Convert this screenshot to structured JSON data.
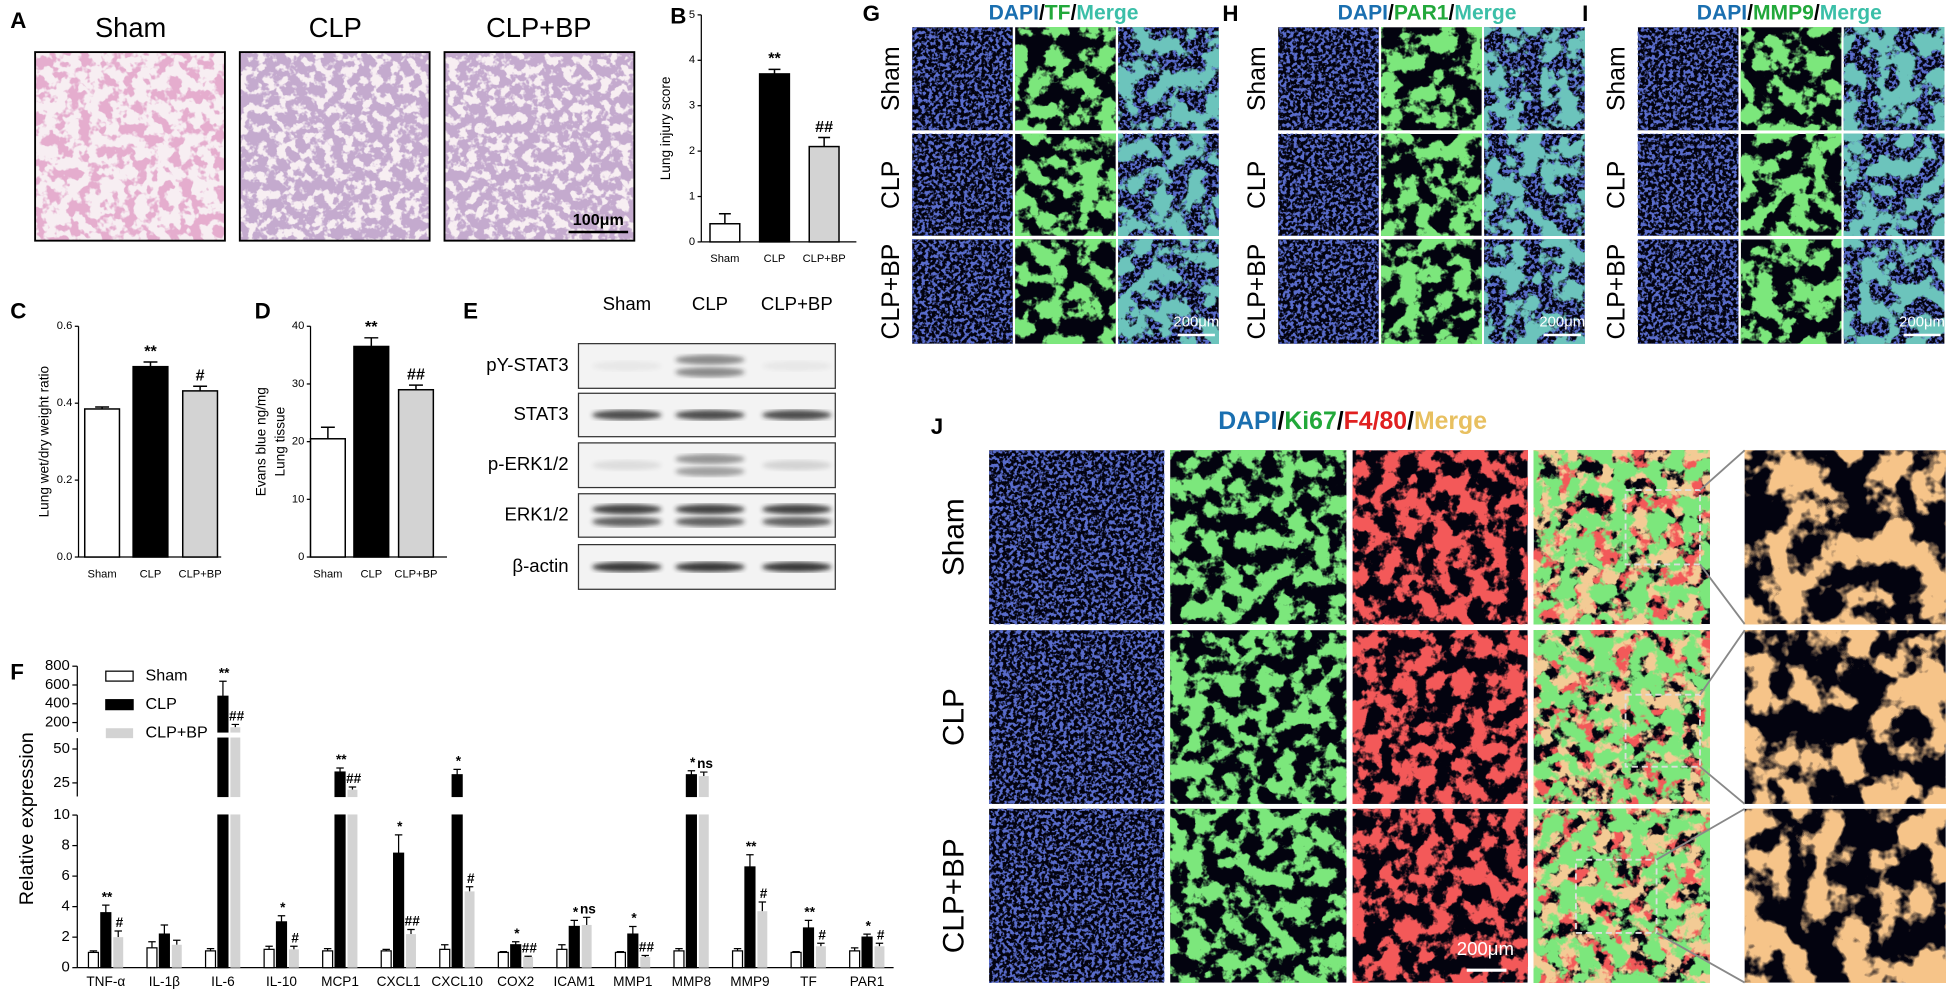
{
  "chart_data": [
    {
      "panel": "B",
      "type": "bar",
      "ylabel": "Lung injury score",
      "categories": [
        "Sham",
        "CLP",
        "CLP+BP"
      ],
      "values": [
        0.4,
        3.7,
        2.1
      ],
      "errors": [
        0.22,
        0.1,
        0.2
      ],
      "colors": [
        "#ffffff",
        "#000000",
        "#d3d3d3"
      ],
      "labels": [
        null,
        "**",
        "##"
      ],
      "ylim": [
        0,
        5
      ],
      "yticks": [
        0,
        1,
        2,
        3,
        4,
        5
      ]
    },
    {
      "panel": "C",
      "type": "bar",
      "ylabel": "Lung wet/dry weight ratio",
      "categories": [
        "Sham",
        "CLP",
        "CLP+BP"
      ],
      "values": [
        0.385,
        0.495,
        0.432
      ],
      "errors": [
        0.005,
        0.012,
        0.012
      ],
      "colors": [
        "#ffffff",
        "#000000",
        "#d3d3d3"
      ],
      "labels": [
        null,
        "**",
        "#"
      ],
      "ylim": [
        0,
        0.6
      ],
      "yticks": [
        {
          "value": 0,
          "label": "0.0"
        },
        0.2,
        0.4,
        0.6
      ]
    },
    {
      "panel": "D",
      "type": "bar",
      "ylabel": [
        "Evans blue ng/mg",
        "Lung tissue"
      ],
      "categories": [
        "Sham",
        "CLP",
        "CLP+BP"
      ],
      "values": [
        20.5,
        36.5,
        29
      ],
      "errors": [
        2,
        1.5,
        0.8
      ],
      "colors": [
        "#ffffff",
        "#000000",
        "#d3d3d3"
      ],
      "labels": [
        null,
        "**",
        "##"
      ],
      "ylim": [
        0,
        40
      ],
      "yticks": [
        0,
        10,
        20,
        30,
        40
      ]
    },
    {
      "panel": "F",
      "type": "grouped_bar",
      "ylabel": "Relative expression",
      "legend": "upper left",
      "categories": [
        "TNF-α",
        "IL-1β",
        "IL-6",
        "IL-10",
        "MCP1",
        "CXCL1",
        "CXCL10",
        "COX2",
        "ICAM1",
        "MMP1",
        "MMP8",
        "MMP9",
        "TF",
        "PAR1"
      ],
      "series": [
        {
          "name": "Sham",
          "color": "#ffffff",
          "values": [
            1.0,
            1.3,
            1.1,
            1.2,
            1.1,
            1.1,
            1.2,
            1.0,
            1.2,
            1.0,
            1.1,
            1.1,
            1.0,
            1.1
          ],
          "errors": [
            0.1,
            0.4,
            0.15,
            0.2,
            0.15,
            0.1,
            0.3,
            0.05,
            0.3,
            0.05,
            0.15,
            0.15,
            0.05,
            0.2
          ],
          "labels": [
            null,
            null,
            null,
            null,
            null,
            null,
            null,
            null,
            null,
            null,
            null,
            null,
            null,
            null
          ]
        },
        {
          "name": "CLP",
          "color": "#000000",
          "values": [
            3.6,
            2.2,
            480,
            3.0,
            33,
            7.5,
            31,
            1.5,
            2.7,
            2.2,
            31,
            6.6,
            2.6,
            2.0
          ],
          "errors": [
            0.5,
            0.6,
            160,
            0.4,
            3,
            1.2,
            4,
            0.2,
            0.4,
            0.5,
            3,
            0.8,
            0.5,
            0.2
          ],
          "labels": [
            "**",
            null,
            "**",
            "*",
            "**",
            "*",
            "*",
            "*",
            "*",
            "*",
            "*",
            "**",
            "**",
            "*"
          ]
        },
        {
          "name": "CLP+BP",
          "color": "#d3d3d3",
          "values": [
            2.0,
            1.5,
            150,
            1.2,
            20,
            2.2,
            5.0,
            0.7,
            2.8,
            0.7,
            30,
            3.7,
            1.4,
            1.4
          ],
          "errors": [
            0.4,
            0.3,
            30,
            0.2,
            2,
            0.3,
            0.3,
            0.05,
            0.5,
            0.1,
            3,
            0.6,
            0.2,
            0.2
          ],
          "labels": [
            "#",
            null,
            "##",
            "#",
            "##",
            "##",
            "#",
            "##",
            "ns",
            "##",
            "ns",
            "#",
            "#",
            "#"
          ]
        }
      ],
      "y_segments": [
        {
          "ylim": [
            0,
            10
          ],
          "yticks": [
            0,
            2,
            4,
            6,
            8,
            10
          ]
        },
        {
          "ylim": [
            15,
            58
          ],
          "yticks": [
            25,
            50
          ]
        },
        {
          "ylim": [
            100,
            800
          ],
          "yticks": [
            200,
            400,
            600,
            800
          ]
        }
      ]
    }
  ],
  "panels": {
    "A": {
      "letter": "A",
      "titles": [
        "Sham",
        "CLP",
        "CLP+BP"
      ],
      "scale_bar": "100μm"
    },
    "E": {
      "letter": "E",
      "columns": [
        "Sham",
        "CLP",
        "CLP+BP"
      ],
      "rows": [
        "pY-STAT3",
        "STAT3",
        "p-ERK1/2",
        "ERK1/2",
        "β-actin"
      ]
    },
    "G": {
      "letter": "G",
      "header": [
        {
          "text": "DAPI",
          "color": "#1a6fb0"
        },
        {
          "text": "/",
          "color": "#000000"
        },
        {
          "text": "TF",
          "color": "#22a83a"
        },
        {
          "text": "/",
          "color": "#000000"
        },
        {
          "text": "Merge",
          "color": "#3bbfa8"
        }
      ],
      "rows": [
        "Sham",
        "CLP",
        "CLP+BP"
      ],
      "scale_bar": "200μm"
    },
    "H": {
      "letter": "H",
      "header": [
        {
          "text": "DAPI",
          "color": "#1a6fb0"
        },
        {
          "text": "/",
          "color": "#000000"
        },
        {
          "text": "PAR1",
          "color": "#22a83a"
        },
        {
          "text": "/",
          "color": "#000000"
        },
        {
          "text": "Merge",
          "color": "#3bbfa8"
        }
      ],
      "rows": [
        "Sham",
        "CLP",
        "CLP+BP"
      ],
      "scale_bar": "200μm"
    },
    "I": {
      "letter": "I",
      "header": [
        {
          "text": "DAPI",
          "color": "#1a6fb0"
        },
        {
          "text": "/",
          "color": "#000000"
        },
        {
          "text": "MMP9",
          "color": "#22a83a"
        },
        {
          "text": "/",
          "color": "#000000"
        },
        {
          "text": "Merge",
          "color": "#3bbfa8"
        }
      ],
      "rows": [
        "Sham",
        "CLP",
        "CLP+BP"
      ],
      "scale_bar": "200μm"
    },
    "J": {
      "letter": "J",
      "header": [
        {
          "text": "DAPI",
          "color": "#1a6fb0"
        },
        {
          "text": "/",
          "color": "#000000"
        },
        {
          "text": "Ki67",
          "color": "#22a83a"
        },
        {
          "text": "/",
          "color": "#000000"
        },
        {
          "text": "F4/80",
          "color": "#e02020"
        },
        {
          "text": "/",
          "color": "#000000"
        },
        {
          "text": "Merge",
          "color": "#e8c060"
        }
      ],
      "rows": [
        "Sham",
        "CLP",
        "CLP+BP"
      ],
      "scale_bar": "200μm"
    }
  }
}
